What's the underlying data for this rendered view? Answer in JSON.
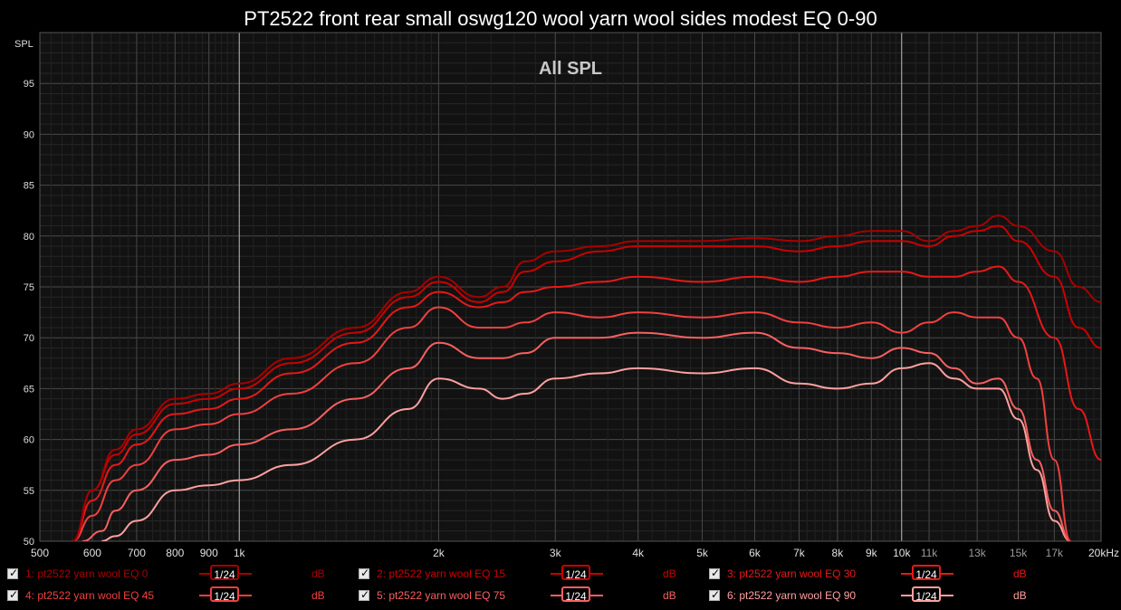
{
  "title": "PT2522 front rear small oswg120 wool yarn wool sides modest EQ 0-90",
  "chart_data": {
    "type": "line",
    "title": "PT2522 front rear small oswg120 wool yarn wool sides modest EQ 0-90",
    "subtitle": "All SPL",
    "ylabel": "SPL",
    "xlabel": "",
    "xscale": "log",
    "xlim": [
      500,
      20000
    ],
    "ylim": [
      50,
      100
    ],
    "y_ticks": [
      50,
      55,
      60,
      65,
      70,
      75,
      80,
      85,
      90,
      95
    ],
    "x_ticks": [
      {
        "v": 500,
        "label": "500"
      },
      {
        "v": 600,
        "label": "600"
      },
      {
        "v": 700,
        "label": "700"
      },
      {
        "v": 800,
        "label": "800"
      },
      {
        "v": 900,
        "label": "900"
      },
      {
        "v": 1000,
        "label": "1k"
      },
      {
        "v": 2000,
        "label": "2k"
      },
      {
        "v": 3000,
        "label": "3k"
      },
      {
        "v": 4000,
        "label": "4k"
      },
      {
        "v": 5000,
        "label": "5k"
      },
      {
        "v": 6000,
        "label": "6k"
      },
      {
        "v": 7000,
        "label": "7k"
      },
      {
        "v": 8000,
        "label": "8k"
      },
      {
        "v": 9000,
        "label": "9k"
      },
      {
        "v": 10000,
        "label": "10k"
      },
      {
        "v": 11000,
        "label": "11k"
      },
      {
        "v": 13000,
        "label": "13k"
      },
      {
        "v": 15000,
        "label": "15k"
      },
      {
        "v": 17000,
        "label": "17k"
      },
      {
        "v": 20000,
        "label": "20kHz"
      }
    ],
    "grid": true,
    "legend_position": "bottom",
    "series": [
      {
        "name": "1: pt2522 yarn wool EQ 0",
        "color": "#a80000",
        "points": [
          [
            560,
            50
          ],
          [
            600,
            55
          ],
          [
            650,
            59
          ],
          [
            700,
            61
          ],
          [
            800,
            64
          ],
          [
            900,
            64.5
          ],
          [
            1000,
            65.5
          ],
          [
            1200,
            68
          ],
          [
            1500,
            71
          ],
          [
            1800,
            74.5
          ],
          [
            2000,
            76
          ],
          [
            2300,
            74
          ],
          [
            2500,
            75
          ],
          [
            2700,
            77.5
          ],
          [
            3000,
            78.5
          ],
          [
            3500,
            79
          ],
          [
            4000,
            79.5
          ],
          [
            5000,
            79.5
          ],
          [
            6000,
            79.8
          ],
          [
            7000,
            79.5
          ],
          [
            8000,
            80
          ],
          [
            9000,
            80.5
          ],
          [
            10000,
            80.5
          ],
          [
            11000,
            79.5
          ],
          [
            12000,
            80.5
          ],
          [
            13000,
            81
          ],
          [
            14000,
            82
          ],
          [
            15000,
            81
          ],
          [
            17000,
            78.5
          ],
          [
            18500,
            75
          ],
          [
            20000,
            73.5
          ]
        ]
      },
      {
        "name": "2: pt2522 yarn wool EQ 15",
        "color": "#cc0000",
        "points": [
          [
            560,
            50
          ],
          [
            600,
            55
          ],
          [
            650,
            58.5
          ],
          [
            700,
            60.5
          ],
          [
            800,
            63.5
          ],
          [
            900,
            64
          ],
          [
            1000,
            65
          ],
          [
            1200,
            67.5
          ],
          [
            1500,
            70.5
          ],
          [
            1800,
            74
          ],
          [
            2000,
            75.5
          ],
          [
            2300,
            73.5
          ],
          [
            2500,
            74.5
          ],
          [
            2700,
            76.5
          ],
          [
            3000,
            77.5
          ],
          [
            3500,
            78.5
          ],
          [
            4000,
            79
          ],
          [
            5000,
            79
          ],
          [
            6000,
            79
          ],
          [
            7000,
            78.5
          ],
          [
            8000,
            79
          ],
          [
            9000,
            79.5
          ],
          [
            10000,
            79.5
          ],
          [
            11000,
            79
          ],
          [
            12000,
            80
          ],
          [
            13000,
            80.5
          ],
          [
            14000,
            81
          ],
          [
            15000,
            79.5
          ],
          [
            17000,
            76
          ],
          [
            18500,
            71
          ],
          [
            20000,
            69
          ]
        ]
      },
      {
        "name": "3: pt2522 yarn wool EQ 30",
        "color": "#e81818",
        "points": [
          [
            560,
            50
          ],
          [
            600,
            54
          ],
          [
            650,
            57.5
          ],
          [
            700,
            59.5
          ],
          [
            800,
            62.5
          ],
          [
            900,
            63
          ],
          [
            1000,
            64
          ],
          [
            1200,
            66.5
          ],
          [
            1500,
            69.5
          ],
          [
            1800,
            73
          ],
          [
            2000,
            74.5
          ],
          [
            2300,
            73
          ],
          [
            2500,
            73.5
          ],
          [
            2700,
            74.5
          ],
          [
            3000,
            75
          ],
          [
            3500,
            75.5
          ],
          [
            4000,
            76
          ],
          [
            5000,
            75.5
          ],
          [
            6000,
            76
          ],
          [
            7000,
            75.5
          ],
          [
            8000,
            76
          ],
          [
            9000,
            76.5
          ],
          [
            10000,
            76.5
          ],
          [
            11000,
            76
          ],
          [
            12000,
            76
          ],
          [
            13000,
            76.5
          ],
          [
            14000,
            77
          ],
          [
            15000,
            75.5
          ],
          [
            17000,
            70
          ],
          [
            18500,
            63
          ],
          [
            20000,
            58
          ]
        ]
      },
      {
        "name": "4: pt2522 yarn wool EQ 45",
        "color": "#f04040",
        "points": [
          [
            560,
            50
          ],
          [
            600,
            52.5
          ],
          [
            650,
            56
          ],
          [
            700,
            57.5
          ],
          [
            800,
            61
          ],
          [
            900,
            61.5
          ],
          [
            1000,
            62.5
          ],
          [
            1200,
            64.5
          ],
          [
            1500,
            67.5
          ],
          [
            1800,
            71
          ],
          [
            2000,
            73
          ],
          [
            2300,
            71
          ],
          [
            2500,
            71
          ],
          [
            2700,
            71.5
          ],
          [
            3000,
            72.5
          ],
          [
            3500,
            72
          ],
          [
            4000,
            72.5
          ],
          [
            5000,
            72
          ],
          [
            6000,
            72.5
          ],
          [
            7000,
            71.5
          ],
          [
            8000,
            71
          ],
          [
            9000,
            71.5
          ],
          [
            10000,
            70.5
          ],
          [
            11000,
            71.5
          ],
          [
            12000,
            72.5
          ],
          [
            13000,
            72
          ],
          [
            14000,
            72
          ],
          [
            15000,
            70
          ],
          [
            16000,
            66
          ],
          [
            17000,
            58
          ],
          [
            18000,
            50
          ]
        ]
      },
      {
        "name": "5: pt2522 yarn wool EQ 75",
        "color": "#f86060",
        "points": [
          [
            580,
            50
          ],
          [
            620,
            51
          ],
          [
            650,
            53
          ],
          [
            700,
            55
          ],
          [
            800,
            58
          ],
          [
            900,
            58.5
          ],
          [
            1000,
            59.5
          ],
          [
            1200,
            61
          ],
          [
            1500,
            64
          ],
          [
            1800,
            67
          ],
          [
            2000,
            69.5
          ],
          [
            2300,
            68
          ],
          [
            2500,
            68
          ],
          [
            2700,
            68.5
          ],
          [
            3000,
            70
          ],
          [
            3500,
            70
          ],
          [
            4000,
            70.5
          ],
          [
            5000,
            70
          ],
          [
            6000,
            70.5
          ],
          [
            7000,
            69
          ],
          [
            8000,
            68.5
          ],
          [
            9000,
            68
          ],
          [
            10000,
            69
          ],
          [
            11000,
            68.5
          ],
          [
            12000,
            67
          ],
          [
            13000,
            65.5
          ],
          [
            14000,
            66
          ],
          [
            15000,
            63
          ],
          [
            16000,
            58
          ],
          [
            17000,
            53
          ],
          [
            18000,
            50
          ]
        ]
      },
      {
        "name": "6: pt2522 yarn wool EQ 90",
        "color": "#ffa0a0",
        "points": [
          [
            620,
            50
          ],
          [
            650,
            50.5
          ],
          [
            700,
            52
          ],
          [
            800,
            55
          ],
          [
            900,
            55.5
          ],
          [
            1000,
            56
          ],
          [
            1200,
            57.5
          ],
          [
            1500,
            60
          ],
          [
            1800,
            63
          ],
          [
            2000,
            66
          ],
          [
            2300,
            65
          ],
          [
            2500,
            64
          ],
          [
            2700,
            64.5
          ],
          [
            3000,
            66
          ],
          [
            3500,
            66.5
          ],
          [
            4000,
            67
          ],
          [
            5000,
            66.5
          ],
          [
            6000,
            67
          ],
          [
            7000,
            65.5
          ],
          [
            8000,
            65
          ],
          [
            9000,
            65.5
          ],
          [
            10000,
            67
          ],
          [
            11000,
            67.5
          ],
          [
            12000,
            66
          ],
          [
            13000,
            65
          ],
          [
            14000,
            65
          ],
          [
            15000,
            62
          ],
          [
            16000,
            57
          ],
          [
            17000,
            52
          ],
          [
            18000,
            50
          ]
        ]
      }
    ]
  },
  "legend": {
    "smooth_label": "1/24",
    "unit_label": "dB"
  }
}
